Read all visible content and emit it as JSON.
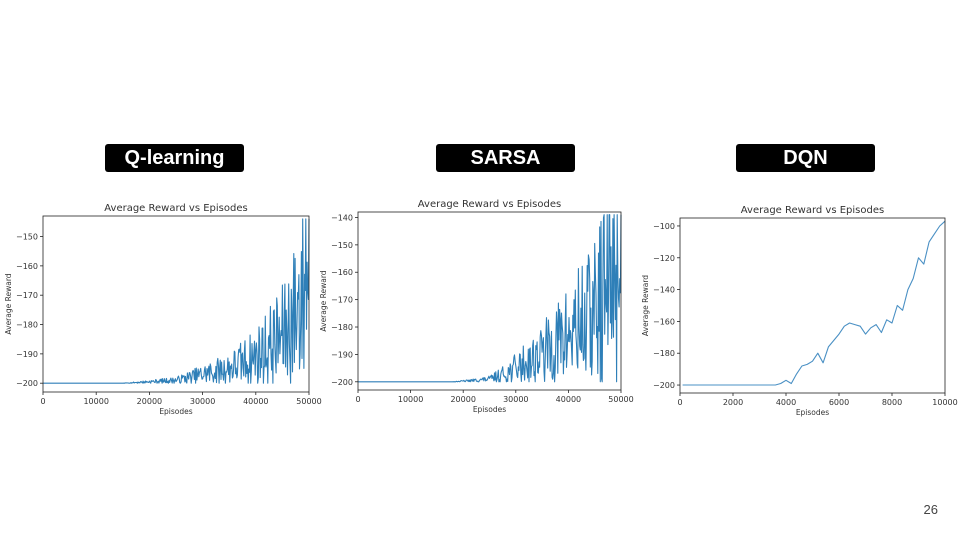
{
  "slide": {
    "page_number": "26"
  },
  "charts": [
    {
      "badge": "Q-learning"
    },
    {
      "badge": "SARSA"
    },
    {
      "badge": "DQN"
    }
  ],
  "chart_data": [
    {
      "type": "line",
      "title": "Average Reward vs Episodes",
      "xlabel": "Episodes",
      "ylabel": "Average Reward",
      "xlim": [
        0,
        50000
      ],
      "ylim": [
        -203,
        -143
      ],
      "xticks": [
        0,
        10000,
        20000,
        30000,
        40000,
        50000
      ],
      "yticks": [
        -200,
        -190,
        -180,
        -170,
        -160,
        -150
      ],
      "grid": false,
      "color": "#2e7fb8",
      "noisy": true,
      "series": [
        {
          "x": [
            0,
            10000,
            15000,
            20000,
            25000,
            30000,
            35000,
            40000,
            45000,
            47000,
            48500,
            49500,
            50000
          ],
          "y": [
            -200,
            -200,
            -200,
            -199.5,
            -199,
            -197,
            -195,
            -191,
            -184,
            -178,
            -170,
            -160,
            -150
          ]
        }
      ]
    },
    {
      "type": "line",
      "title": "Average Reward vs Episodes",
      "xlabel": "Episodes",
      "ylabel": "Average Reward",
      "xlim": [
        0,
        50000
      ],
      "ylim": [
        -203,
        -138
      ],
      "xticks": [
        0,
        10000,
        20000,
        30000,
        40000,
        50000
      ],
      "yticks": [
        -200,
        -190,
        -180,
        -170,
        -160,
        -150,
        -140
      ],
      "grid": false,
      "color": "#2e7fb8",
      "noisy": true,
      "series": [
        {
          "x": [
            0,
            10000,
            18000,
            22000,
            25000,
            28000,
            30000,
            35000,
            40000,
            45000,
            47000,
            48500,
            50000
          ],
          "y": [
            -200,
            -200,
            -200,
            -199.5,
            -199,
            -197,
            -195,
            -190,
            -183,
            -175,
            -168,
            -158,
            -152
          ]
        }
      ]
    },
    {
      "type": "line",
      "title": "Average Reward vs Episodes",
      "xlabel": "Episodes",
      "ylabel": "Average Reward",
      "xlim": [
        0,
        10000
      ],
      "ylim": [
        -205,
        -95
      ],
      "xticks": [
        0,
        2000,
        4000,
        6000,
        8000,
        10000
      ],
      "yticks": [
        -200,
        -180,
        -160,
        -140,
        -120,
        -100
      ],
      "grid": false,
      "color": "#4a90c4",
      "noisy": false,
      "series": [
        {
          "x": [
            100,
            2000,
            3600,
            3800,
            4000,
            4200,
            4400,
            4600,
            4800,
            5000,
            5200,
            5400,
            5600,
            5800,
            6000,
            6200,
            6400,
            6600,
            6800,
            7000,
            7200,
            7400,
            7600,
            7800,
            8000,
            8200,
            8400,
            8600,
            8800,
            9000,
            9200,
            9400,
            9600,
            9800,
            10000
          ],
          "y": [
            -200,
            -200,
            -200,
            -199,
            -197,
            -199,
            -193,
            -188,
            -187,
            -185,
            -180,
            -186,
            -176,
            -172,
            -168,
            -163,
            -161,
            -162,
            -163,
            -168,
            -164,
            -162,
            -167,
            -159,
            -161,
            -150,
            -153,
            -140,
            -133,
            -120,
            -124,
            -110,
            -105,
            -100,
            -97
          ]
        }
      ]
    }
  ]
}
